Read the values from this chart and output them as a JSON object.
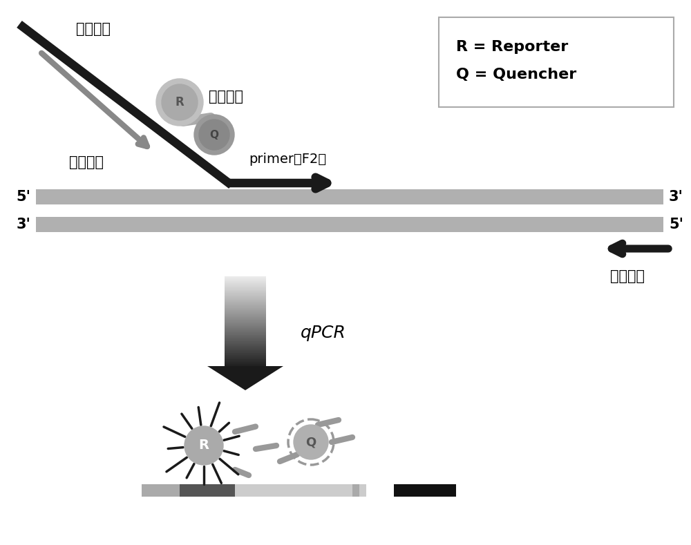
{
  "bg_color": "#ffffff",
  "text_color": "#000000",
  "dna_color": "#aaaaaa",
  "fuzu_primer_label": "附属引物",
  "waiyan_primer_label": "外延引物",
  "fuzu_probe_label": "附属探针",
  "downstream_label": "下游引物",
  "primer_f2_label": "primer（F2）",
  "legend_line1": "R = Reporter",
  "legend_line2": "Q = Quencher",
  "qpcr_label": "qPCR",
  "strand_color": "#b0b0b0",
  "arrow_black": "#1a1a1a",
  "arrow_gray": "#888888",
  "probe_gray": "#aaaaaa",
  "probe_dark": "#777777"
}
